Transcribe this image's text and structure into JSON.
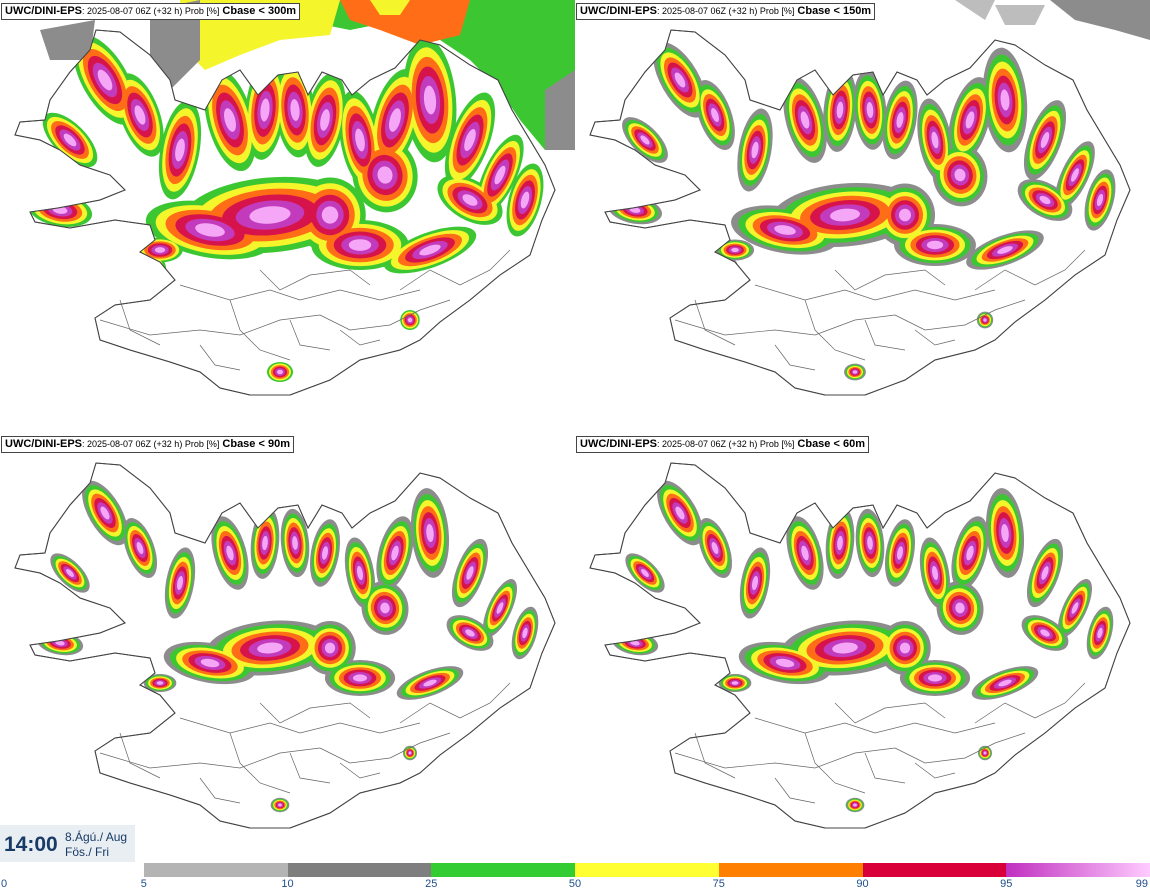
{
  "panels": [
    {
      "model": "UWC/DINI-EPS",
      "meta": ": 2025-08-07 06Z (+32 h) Prob [%]",
      "field": "Cbase < 300m",
      "level": 3
    },
    {
      "model": "UWC/DINI-EPS",
      "meta": ": 2025-08-07 06Z (+32 h) Prob [%]",
      "field": "Cbase < 150m",
      "level": 2
    },
    {
      "model": "UWC/DINI-EPS",
      "meta": ": 2025-08-07 06Z (+32 h) Prob [%]",
      "field": "Cbase < 90m",
      "level": 1
    },
    {
      "model": "UWC/DINI-EPS",
      "meta": ": 2025-08-07 06Z (+32 h) Prob [%]",
      "field": "Cbase < 60m",
      "level": 1
    }
  ],
  "valid_time": {
    "time": "14:00",
    "date_line1": "8.Ágú./ Aug",
    "date_line2": "Fös./ Fri"
  },
  "colorbar": {
    "ticks": [
      "0",
      "5",
      "10",
      "25",
      "50",
      "75",
      "90",
      "95",
      "99"
    ],
    "colors": [
      "#ffffff",
      "#b4b4b4",
      "#7e7e7e",
      "#33cc33",
      "#ffff33",
      "#ff7f00",
      "#d9003a",
      "#c030c0"
    ],
    "last_gradient_end": "#ffccff"
  },
  "colors": {
    "light_pink": "#f6a6f6",
    "magenta": "#c23bbd",
    "crimson": "#d6134a",
    "orange": "#ff6d16",
    "yellow": "#f5f52b",
    "green": "#3cc732",
    "gray": "#8c8c8c",
    "light_gray": "#bdbdbd"
  }
}
